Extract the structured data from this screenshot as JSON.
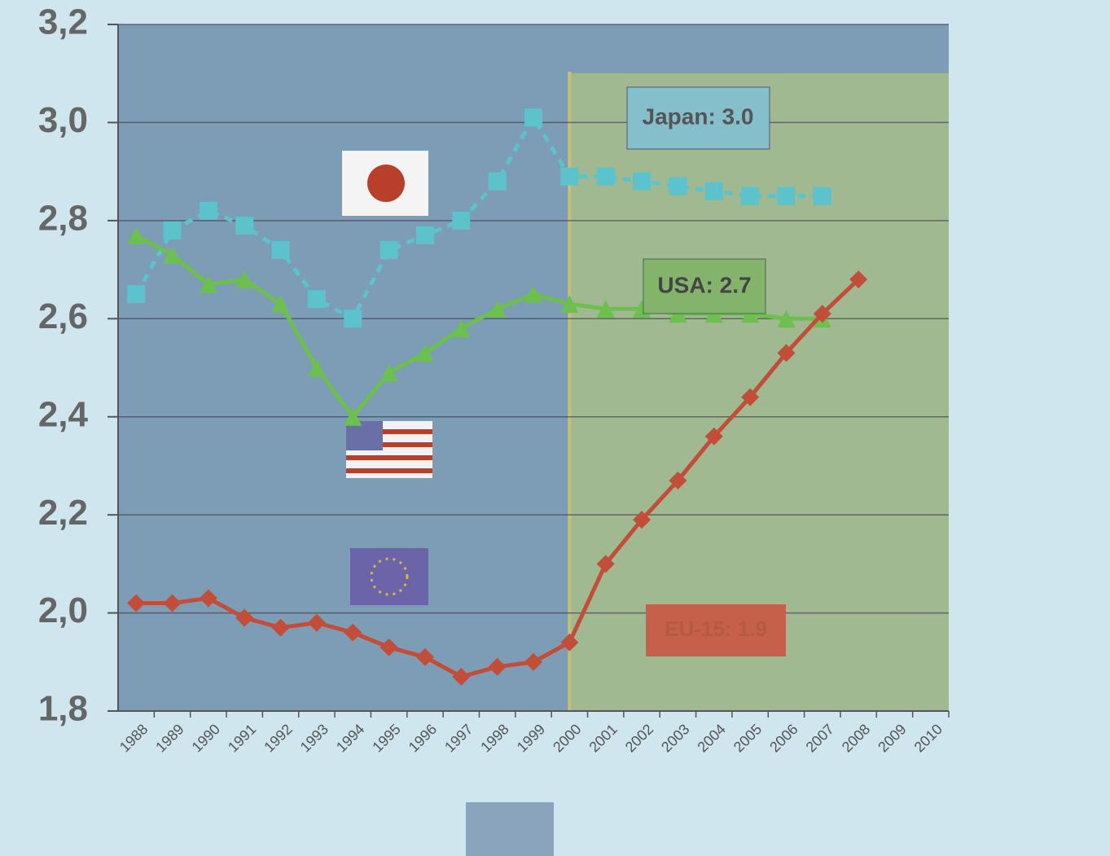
{
  "chart_data": {
    "type": "line",
    "x": [
      "1988",
      "1989",
      "1990",
      "1991",
      "1992",
      "1993",
      "1994",
      "1995",
      "1996",
      "1997",
      "1998",
      "1999",
      "2000",
      "2001",
      "2002",
      "2003",
      "2004",
      "2005",
      "2006",
      "2007",
      "2008",
      "2009",
      "2010"
    ],
    "series": [
      {
        "color": "#5cc3cc",
        "marker": "square",
        "dash": true,
        "values": [
          2.65,
          2.78,
          2.82,
          2.79,
          2.74,
          2.64,
          2.6,
          2.74,
          2.77,
          2.8,
          2.88,
          3.01,
          2.89,
          2.89,
          2.88,
          2.87,
          2.86,
          2.85,
          2.85,
          2.85,
          null,
          null,
          null
        ]
      },
      {
        "color": "#6cc04e",
        "marker": "triangle",
        "dash": false,
        "values": [
          2.77,
          2.73,
          2.67,
          2.68,
          2.63,
          2.5,
          2.4,
          2.49,
          2.53,
          2.58,
          2.62,
          2.65,
          2.63,
          2.62,
          2.62,
          2.61,
          2.61,
          2.61,
          2.6,
          2.6,
          null,
          null,
          null
        ]
      },
      {
        "color": "#c24e3a",
        "marker": "diamond",
        "dash": false,
        "values": [
          2.02,
          2.02,
          2.03,
          1.99,
          1.97,
          1.98,
          1.96,
          1.93,
          1.91,
          1.87,
          1.89,
          1.9,
          1.94,
          2.1,
          2.19,
          2.27,
          2.36,
          2.44,
          2.53,
          2.61,
          2.68,
          null,
          null
        ]
      }
    ],
    "annotations": [
      "Japan: 3.0",
      "USA: 2.7",
      "EU-15: 1.9"
    ],
    "projection_start": "2000",
    "ylim": [
      1.8,
      3.2
    ],
    "yticks": [
      {
        "value": 1.8,
        "label": "1,8"
      },
      {
        "value": 2.0,
        "label": "2,0"
      },
      {
        "value": 2.2,
        "label": "2,2"
      },
      {
        "value": 2.4,
        "label": "2,4"
      },
      {
        "value": 2.6,
        "label": "2,6"
      },
      {
        "value": 2.8,
        "label": "2,8"
      },
      {
        "value": 3.0,
        "label": "3,0"
      },
      {
        "value": 3.2,
        "label": "3,2"
      }
    ],
    "grid": true
  }
}
